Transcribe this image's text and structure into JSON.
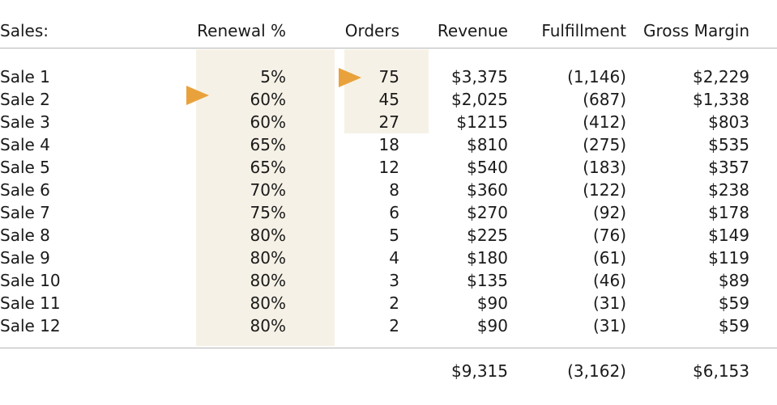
{
  "header": {
    "label": "Sales:",
    "renewal": "Renewal %",
    "orders": "Orders",
    "revenue": "Revenue",
    "fulfillment": "Fulfillment",
    "margin": "Gross Margin"
  },
  "rows": [
    {
      "label": "Sale 1",
      "renewal": "5%",
      "orders": "75",
      "revenue": "$3,375",
      "fulfillment": "(1,146)",
      "margin": "$2,229"
    },
    {
      "label": "Sale 2",
      "renewal": "60%",
      "orders": "45",
      "revenue": "$2,025",
      "fulfillment": "(687)",
      "margin": "$1,338"
    },
    {
      "label": "Sale 3",
      "renewal": "60%",
      "orders": "27",
      "revenue": "$1215",
      "fulfillment": "(412)",
      "margin": "$803"
    },
    {
      "label": "Sale 4",
      "renewal": "65%",
      "orders": "18",
      "revenue": "$810",
      "fulfillment": "(275)",
      "margin": "$535"
    },
    {
      "label": "Sale 5",
      "renewal": "65%",
      "orders": "12",
      "revenue": "$540",
      "fulfillment": "(183)",
      "margin": "$357"
    },
    {
      "label": "Sale 6",
      "renewal": "70%",
      "orders": "8",
      "revenue": "$360",
      "fulfillment": "(122)",
      "margin": "$238"
    },
    {
      "label": "Sale 7",
      "renewal": "75%",
      "orders": "6",
      "revenue": "$270",
      "fulfillment": "(92)",
      "margin": "$178"
    },
    {
      "label": "Sale 8",
      "renewal": "80%",
      "orders": "5",
      "revenue": "$225",
      "fulfillment": "(76)",
      "margin": "$149"
    },
    {
      "label": "Sale 9",
      "renewal": "80%",
      "orders": "4",
      "revenue": "$180",
      "fulfillment": "(61)",
      "margin": "$119"
    },
    {
      "label": "Sale 10",
      "renewal": "80%",
      "orders": "3",
      "revenue": "$135",
      "fulfillment": "(46)",
      "margin": "$89"
    },
    {
      "label": "Sale 11",
      "renewal": "80%",
      "orders": "2",
      "revenue": "$90",
      "fulfillment": "(31)",
      "margin": "$59"
    },
    {
      "label": "Sale 12",
      "renewal": "80%",
      "orders": "2",
      "revenue": "$90",
      "fulfillment": "(31)",
      "margin": "$59"
    }
  ],
  "totals": {
    "revenue": "$9,315",
    "fulfillment": "(3,162)",
    "margin": "$6,153"
  },
  "colors": {
    "highlight": "#f6f1e6",
    "arrow": "#e9a23b",
    "rule": "#b5b5b5"
  },
  "markers": [
    {
      "icon": "pointer-arrow-icon",
      "column": "renewal",
      "row": "Sale 2"
    },
    {
      "icon": "pointer-arrow-icon",
      "column": "orders",
      "row": "Sale 1"
    }
  ]
}
